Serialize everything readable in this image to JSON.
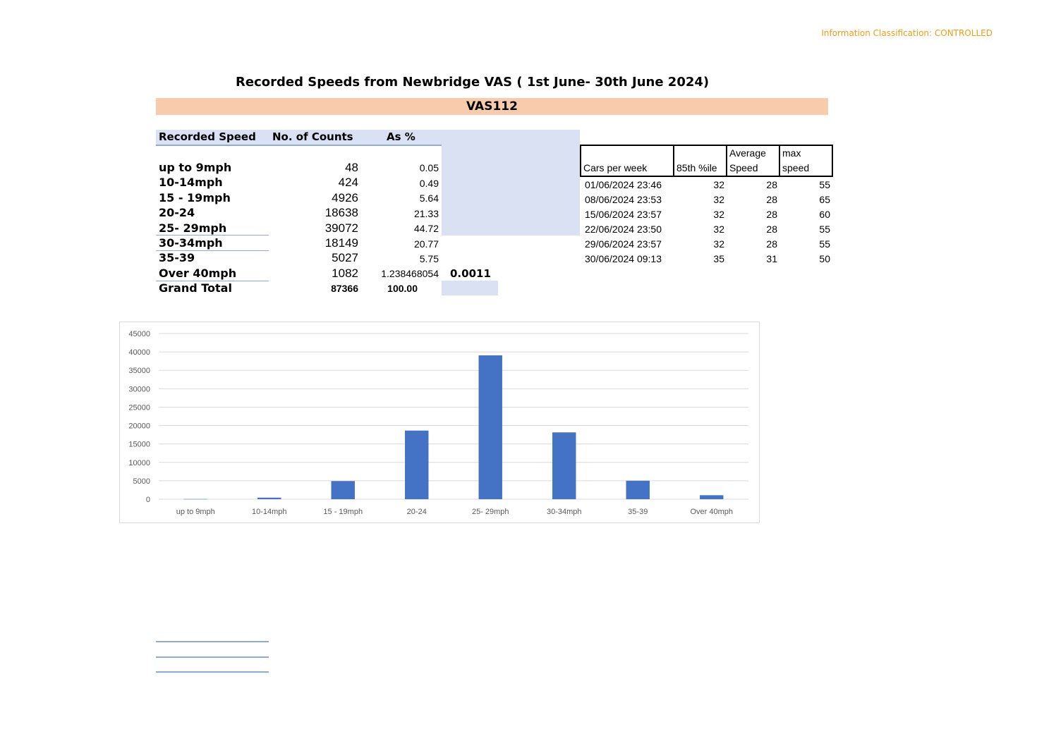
{
  "classification": "Information Classification: CONTROLLED",
  "title": "Recorded Speeds from Newbridge VAS ( 1st June- 30th  June 2024)",
  "banner": "VAS112",
  "summary": {
    "headers": [
      "Recorded Speed",
      "No. of Counts",
      "As %"
    ],
    "rows": [
      {
        "label": "up to 9mph",
        "count": "48",
        "pct": "0.05"
      },
      {
        "label": "10-14mph",
        "count": "424",
        "pct": "0.49"
      },
      {
        "label": "15 - 19mph",
        "count": "4926",
        "pct": "5.64"
      },
      {
        "label": "20-24",
        "count": "18638",
        "pct": "21.33"
      },
      {
        "label": "25- 29mph",
        "count": "39072",
        "pct": "44.72"
      },
      {
        "label": "30-34mph",
        "count": "18149",
        "pct": "20.77"
      },
      {
        "label": "35-39",
        "count": "5027",
        "pct": "5.75"
      },
      {
        "label": "Over 40mph",
        "count": "1082",
        "pct": "1.238468054",
        "extra": "0.0011"
      }
    ],
    "total": {
      "label": "Grand Total",
      "count": "87366",
      "pct": "100.00"
    }
  },
  "weekly": {
    "headers": [
      "Cars per week",
      "85th %ile",
      "Average Speed",
      "max speed"
    ],
    "rows": [
      [
        "01/06/2024 23:46",
        "32",
        "28",
        "55"
      ],
      [
        "08/06/2024 23:53",
        "32",
        "28",
        "65"
      ],
      [
        "15/06/2024 23:57",
        "32",
        "28",
        "60"
      ],
      [
        "22/06/2024 23:50",
        "32",
        "28",
        "55"
      ],
      [
        "29/06/2024 23:57",
        "32",
        "28",
        "55"
      ],
      [
        "30/06/2024 09:13",
        "35",
        "31",
        "50"
      ]
    ]
  },
  "chart_data": {
    "type": "bar",
    "categories": [
      "up to 9mph",
      "10-14mph",
      "15 - 19mph",
      "20-24",
      "25- 29mph",
      "30-34mph",
      "35-39",
      "Over 40mph"
    ],
    "values": [
      48,
      424,
      4926,
      18638,
      39072,
      18149,
      5027,
      1082
    ],
    "ylim": [
      0,
      45000
    ],
    "yticks": [
      0,
      5000,
      10000,
      15000,
      20000,
      25000,
      30000,
      35000,
      40000,
      45000
    ],
    "grid": true,
    "bar_color": "#4472c4",
    "title": "",
    "xlabel": "",
    "ylabel": ""
  }
}
